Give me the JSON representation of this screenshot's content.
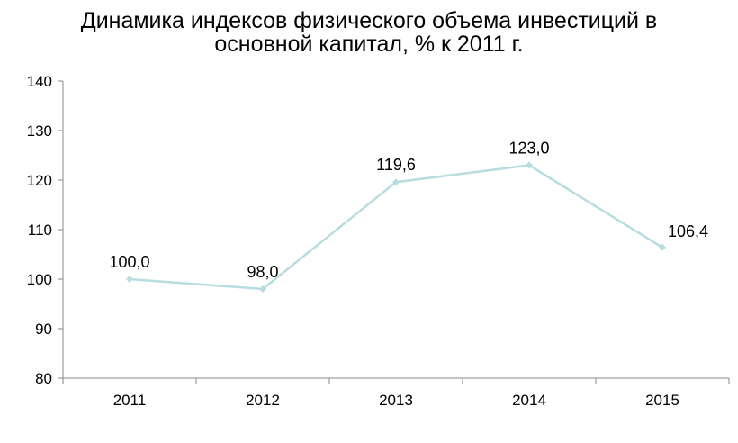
{
  "chart_data": {
    "type": "line",
    "title_lines": [
      "Динамика индексов физического объема инвестиций в",
      "основной капитал, % к 2011 г."
    ],
    "xlabel": "",
    "ylabel": "",
    "categories": [
      "2011",
      "2012",
      "2013",
      "2014",
      "2015"
    ],
    "series": [
      {
        "values": [
          100.0,
          98.0,
          119.6,
          123.0,
          106.4
        ],
        "labels": [
          "100,0",
          "98,0",
          "119,6",
          "123,0",
          "106,4"
        ],
        "color": "#b7dde0"
      }
    ],
    "ylim": [
      80,
      140
    ],
    "yticks": [
      "80",
      "90",
      "100",
      "110",
      "120",
      "130",
      "140"
    ],
    "grid": false,
    "legend": "none",
    "marker": "diamond"
  }
}
